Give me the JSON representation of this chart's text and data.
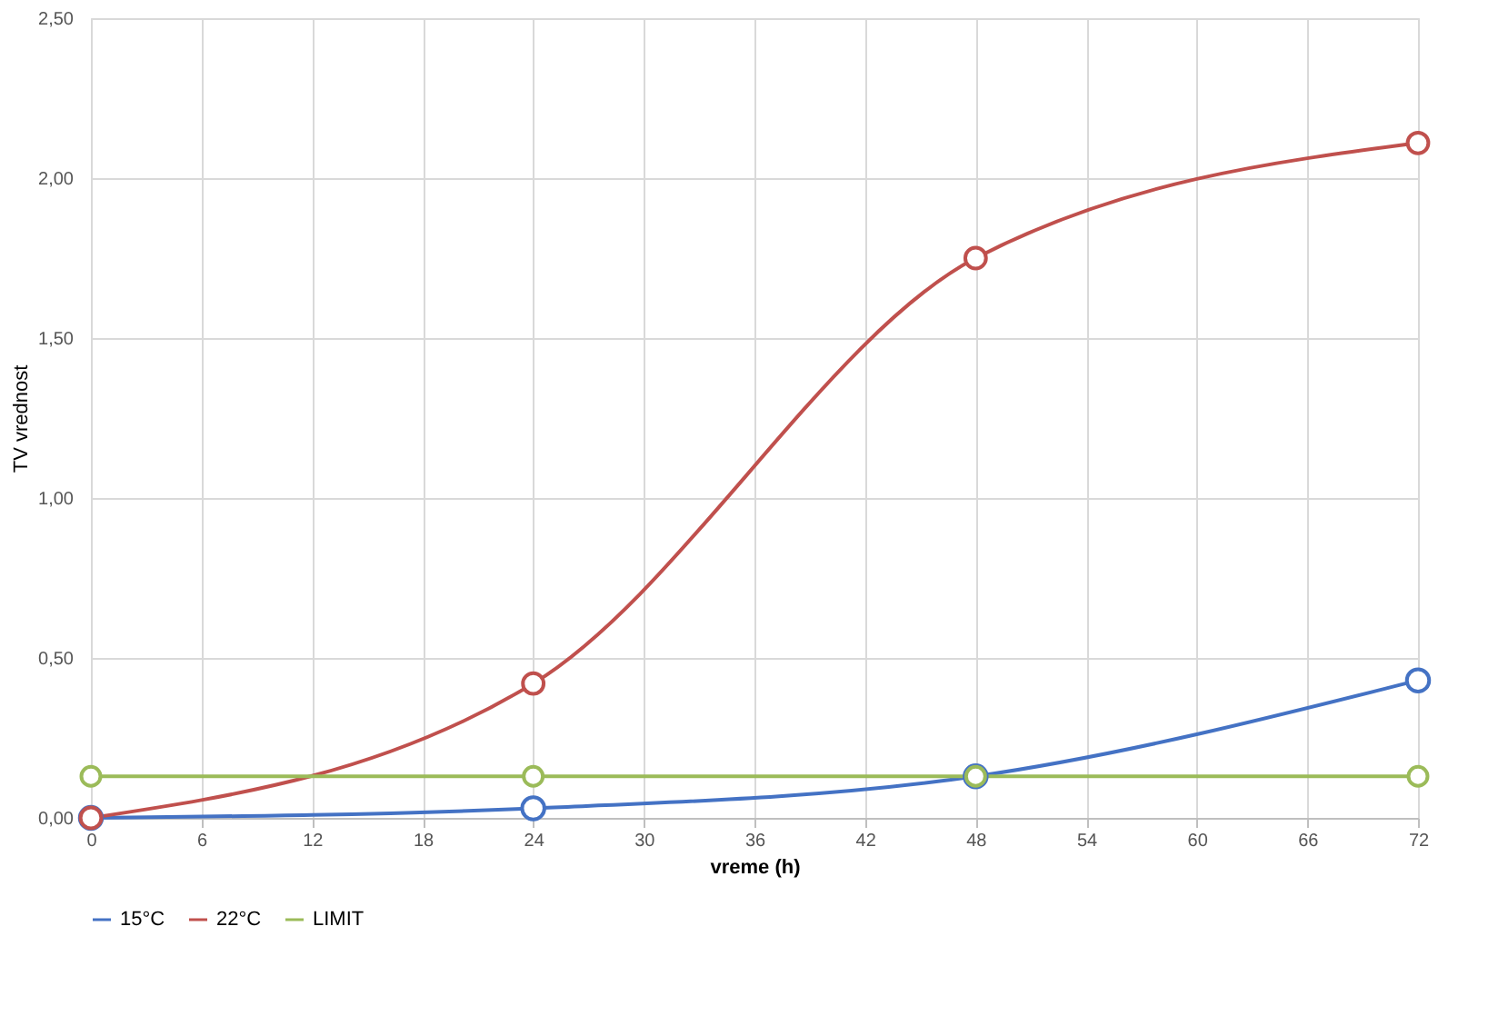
{
  "chart_data": {
    "type": "line",
    "xlabel": "vreme (h)",
    "ylabel": "TV vrednost",
    "x": [
      0,
      24,
      48,
      72
    ],
    "series": [
      {
        "name": "15°C",
        "color": "#4472c4",
        "values": [
          0,
          0.03,
          0.13,
          0.43
        ]
      },
      {
        "name": "22°C",
        "color": "#c0504d",
        "values": [
          0,
          0.42,
          1.75,
          2.11
        ]
      },
      {
        "name": "LIMIT",
        "color": "#9bbb59",
        "values": [
          0.13,
          0.13,
          0.13,
          0.13
        ]
      }
    ],
    "xlim": [
      0,
      72
    ],
    "xticks": [
      0,
      6,
      12,
      18,
      24,
      30,
      36,
      42,
      48,
      54,
      60,
      66,
      72
    ],
    "ylim": [
      0,
      2.5
    ],
    "yticks": [
      {
        "value": 0,
        "label": "0,00"
      },
      {
        "value": 0.5,
        "label": "0,50"
      },
      {
        "value": 1,
        "label": "1,00"
      },
      {
        "value": 1.5,
        "label": "1,50"
      },
      {
        "value": 2,
        "label": "2,00"
      },
      {
        "value": 2.5,
        "label": "2,50"
      }
    ],
    "grid": true,
    "legend": "bottom",
    "marker": "circle",
    "line_style": "solid"
  }
}
